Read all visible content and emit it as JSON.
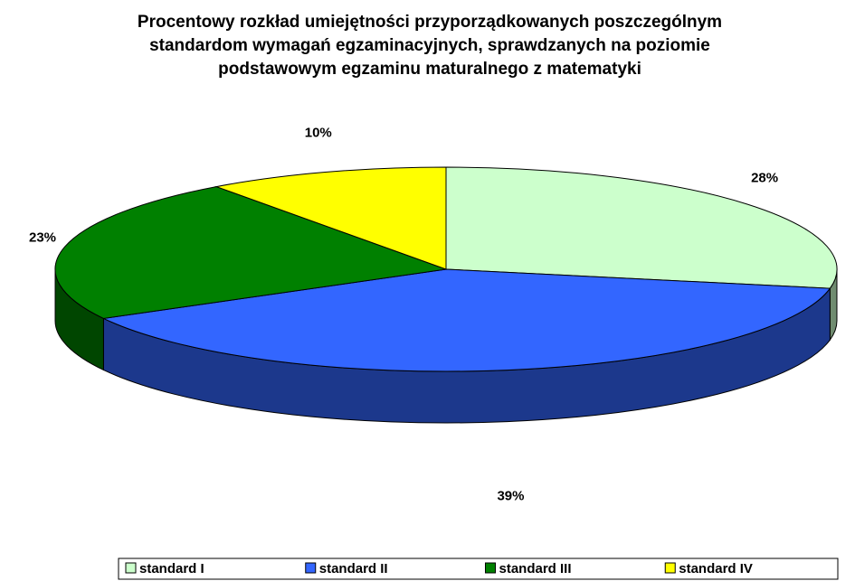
{
  "chart_data": {
    "type": "pie",
    "title": "Procentowy rozkład umiejętności przyporządkowanych poszczególnym standardom wymagań egzaminacyjnych, sprawdzanych na poziomie podstawowym egzaminu maturalnego z matematyki",
    "categories": [
      "standard I",
      "standard II",
      "standard III",
      "standard IV"
    ],
    "values": [
      28,
      39,
      23,
      10
    ],
    "value_labels": [
      "28%",
      "39%",
      "23%",
      "10%"
    ],
    "colors": [
      "#ccffcc",
      "#3366ff",
      "#008000",
      "#ffff00"
    ],
    "legend": "bottom"
  }
}
